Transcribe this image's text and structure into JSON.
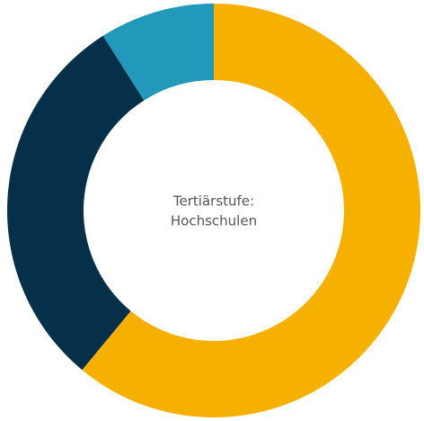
{
  "chart_data": {
    "type": "donut",
    "center_label": [
      "Tertiärstufe:",
      "Hochschulen"
    ],
    "values": [
      61,
      30,
      9
    ],
    "colors": [
      "#f5b000",
      "#06304a",
      "#2299bb"
    ]
  }
}
